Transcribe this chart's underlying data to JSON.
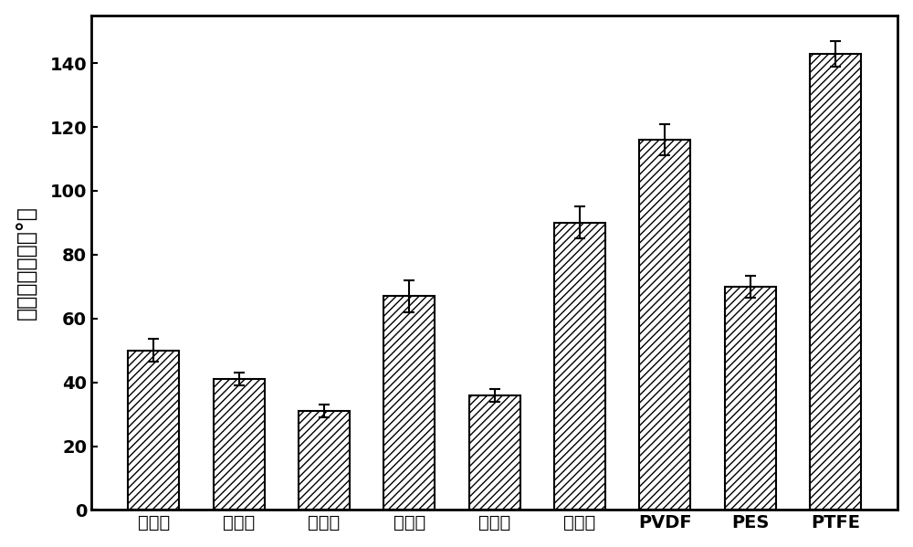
{
  "labels": [
    "试样１",
    "试样２",
    "试样３",
    "试样４",
    "试样５",
    "试样６",
    "PVDF",
    "PES",
    "PTFE"
  ],
  "values": [
    50,
    41,
    31,
    67,
    36,
    90,
    116,
    70,
    143
  ],
  "errors": [
    3.5,
    2.0,
    2.0,
    5.0,
    2.0,
    5.0,
    5.0,
    3.5,
    4.0
  ],
  "ylabel": "表面水接触角（°）",
  "ylim": [
    0,
    155
  ],
  "yticks": [
    0,
    20,
    40,
    60,
    80,
    100,
    120,
    140
  ],
  "bar_color": "white",
  "bar_edgecolor": "black",
  "hatch": "////",
  "bar_width": 0.6,
  "figsize": [
    10.0,
    5.99
  ],
  "dpi": 100,
  "background_color": "white",
  "spine_linewidth": 2.0,
  "tick_labelsize": 14,
  "ylabel_fontsize": 17,
  "errorbar_capsize": 4,
  "errorbar_linewidth": 1.5,
  "errorbar_capthick": 1.5
}
